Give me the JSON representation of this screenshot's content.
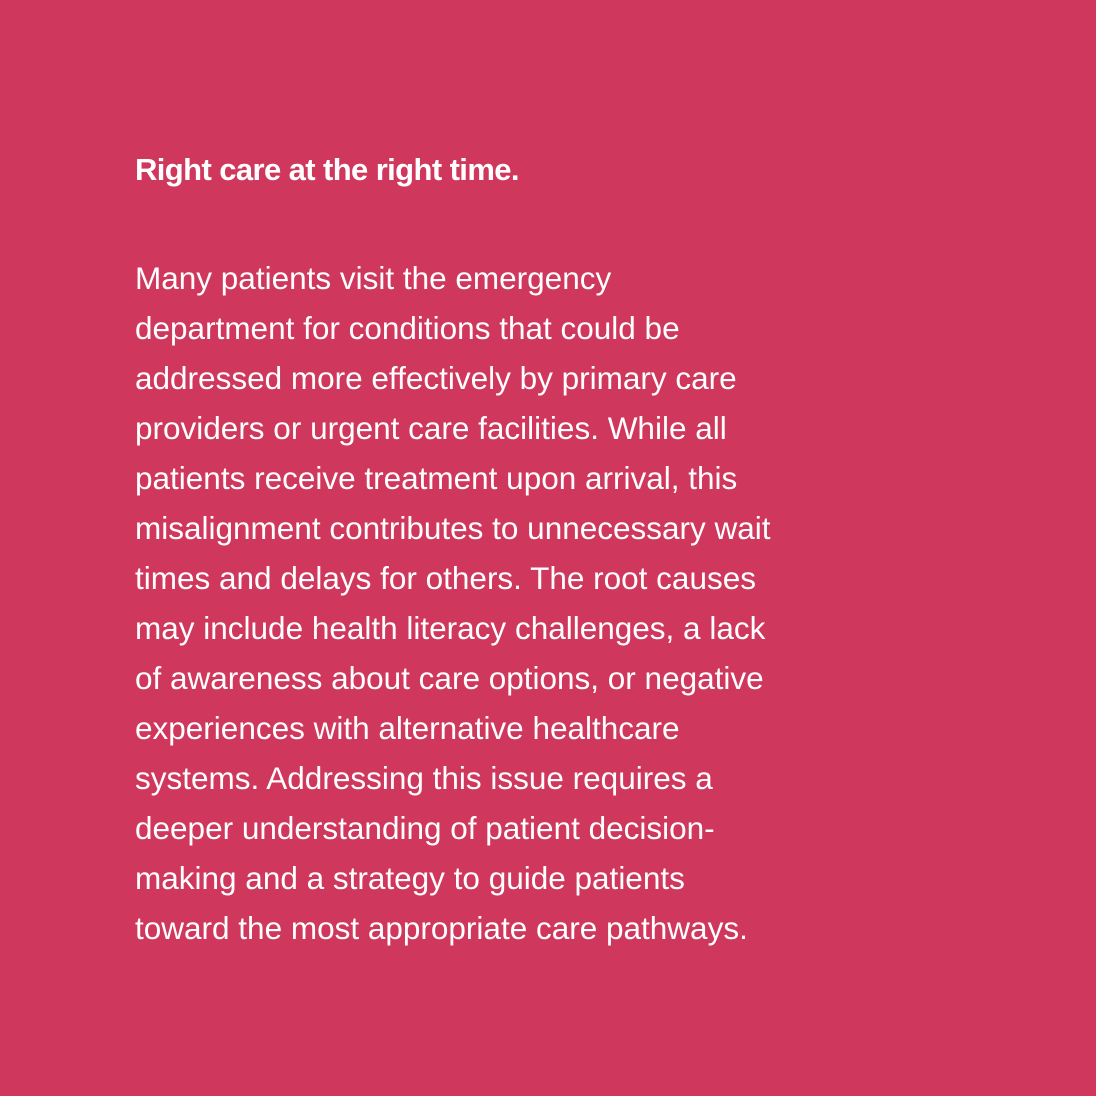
{
  "colors": {
    "background": "#d0375c",
    "text": "#ffffff"
  },
  "heading": "Right care at the right time.",
  "body_lines": [
    "Many patients visit the emergency",
    "department for conditions that could be",
    "addressed more effectively by primary care",
    "providers or urgent care facilities. While all",
    "patients receive treatment upon arrival, this",
    "misalignment contributes to unnecessary wait",
    "times and delays for others. The root causes",
    "may include health literacy challenges, a lack",
    "of awareness about care options, or negative",
    "experiences with alternative healthcare",
    "systems. Addressing this issue requires a",
    "deeper understanding of patient decision-",
    "making and a strategy to guide patients",
    "toward the most appropriate care pathways."
  ]
}
